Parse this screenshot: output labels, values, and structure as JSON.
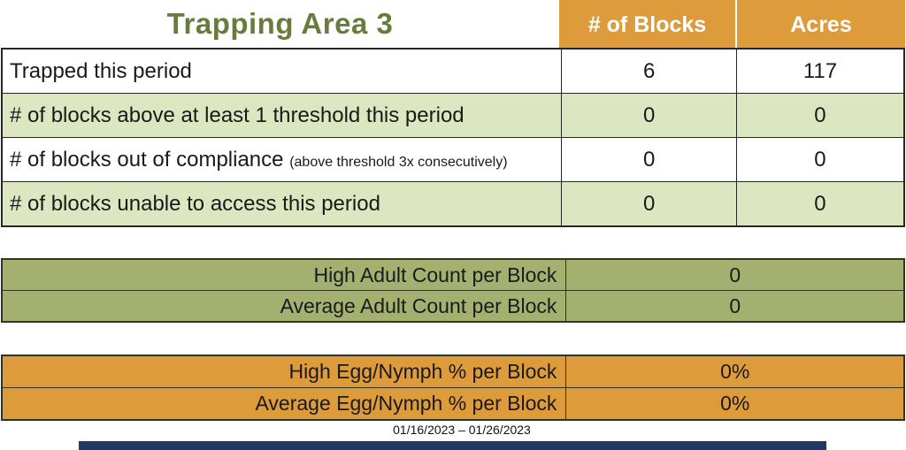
{
  "title": "Trapping Area 3",
  "columns": {
    "blocks": "# of Blocks",
    "acres": "Acres"
  },
  "main_table": {
    "rows": [
      {
        "label": "Trapped this period",
        "note": "",
        "blocks": "6",
        "acres": "117"
      },
      {
        "label": "# of blocks above at least 1 threshold this period",
        "note": "",
        "blocks": "0",
        "acres": "0"
      },
      {
        "label": "# of blocks out of compliance",
        "note": "(above threshold 3x consecutively)",
        "blocks": "0",
        "acres": "0"
      },
      {
        "label": "# of blocks unable to access this period",
        "note": "",
        "blocks": "0",
        "acres": "0"
      }
    ]
  },
  "adult_section": {
    "rows": [
      {
        "label": "High Adult Count per Block",
        "value": "0"
      },
      {
        "label": "Average Adult Count per Block",
        "value": "0"
      }
    ]
  },
  "egg_section": {
    "rows": [
      {
        "label": "High Egg/Nymph % per Block",
        "value": "0%"
      },
      {
        "label": "Average Egg/Nymph % per Block",
        "value": "0%"
      }
    ]
  },
  "date_range": "01/16/2023 – 01/26/2023",
  "colors": {
    "header_orange": "#de9b3c",
    "row_light_green": "#dce6c1",
    "section_olive": "#a3b070",
    "title_green": "#6a7b3e",
    "accent_navy": "#1f3864"
  }
}
